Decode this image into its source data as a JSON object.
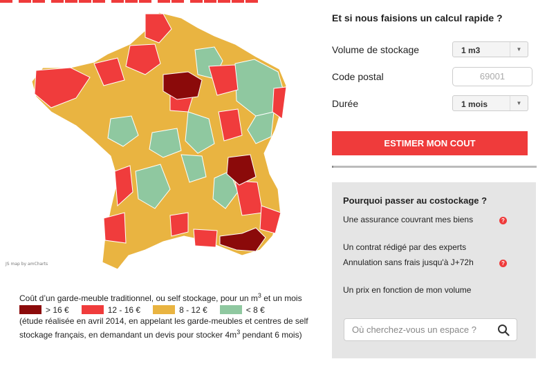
{
  "map": {
    "credit": "JS map by amCharts",
    "colors": {
      "very_high": "#8b0a0a",
      "high": "#f03c3c",
      "medium": "#e9b441",
      "low": "#8fc8a0"
    }
  },
  "legend": {
    "caption_main": "Coût d’un garde-meuble traditionnel, ou self stockage, pour un m",
    "caption_sup": "3",
    "caption_end": " et un mois",
    "items": [
      {
        "label": "> 16 €",
        "color": "#8b0a0a"
      },
      {
        "label": "12 - 16 €",
        "color": "#f03c3c"
      },
      {
        "label": "8 - 12 €",
        "color": "#e9b441"
      },
      {
        "label": "< 8 €",
        "color": "#8fc8a0"
      }
    ],
    "note_main": "(étude réalisée en avril 2014, en appelant les garde-meubles et centres de self stockage français, en demandant un devis pour stocker 4m",
    "note_sup": "3",
    "note_end": " pendant 6 mois)"
  },
  "calculator": {
    "title": "Et si nous faisions un calcul rapide ?",
    "volume_label": "Volume de stockage",
    "volume_value": "1 m3",
    "postal_label": "Code postal",
    "postal_placeholder": "69001",
    "duree_label": "Durée",
    "duree_value": "1 mois",
    "button": "ESTIMER MON COUT"
  },
  "why": {
    "title": "Pourquoi passer au costockage ?",
    "items": [
      "Une assurance couvrant mes biens",
      "Un contrat rédigé par des experts",
      "Annulation sans frais jusqu'à J+72h",
      "Un prix en fonction de mon volume"
    ],
    "help_glyph": "?",
    "search_placeholder": "Où cherchez-vous un espace ?"
  }
}
